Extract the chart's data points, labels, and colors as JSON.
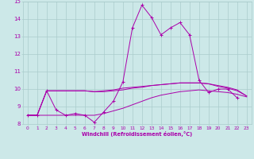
{
  "xlabel": "Windchill (Refroidissement éolien,°C)",
  "bg_color": "#cce8e8",
  "grid_color": "#aacccc",
  "line_color": "#aa00aa",
  "x": [
    0,
    1,
    2,
    3,
    4,
    5,
    6,
    7,
    8,
    9,
    10,
    11,
    12,
    13,
    14,
    15,
    16,
    17,
    18,
    19,
    20,
    21,
    22,
    23
  ],
  "line1_y": [
    8.5,
    8.5,
    9.9,
    8.8,
    8.5,
    8.6,
    8.5,
    8.1,
    8.7,
    9.3,
    10.4,
    13.5,
    14.8,
    14.1,
    13.1,
    13.5,
    13.8,
    13.1,
    10.5,
    9.8,
    10.0,
    10.0,
    9.5,
    null
  ],
  "line2_y": [
    8.5,
    8.5,
    9.9,
    9.9,
    9.9,
    9.9,
    9.9,
    9.85,
    9.9,
    9.95,
    10.05,
    10.1,
    10.15,
    10.2,
    10.25,
    10.3,
    10.35,
    10.35,
    10.35,
    10.3,
    10.2,
    10.1,
    9.95,
    9.6
  ],
  "line3_y": [
    8.5,
    8.5,
    8.5,
    8.5,
    8.5,
    8.5,
    8.5,
    8.5,
    8.6,
    8.75,
    8.9,
    9.1,
    9.3,
    9.5,
    9.65,
    9.75,
    9.85,
    9.9,
    9.95,
    9.9,
    9.85,
    9.8,
    9.7,
    9.55
  ],
  "line4_y": [
    8.5,
    8.5,
    9.9,
    9.9,
    9.9,
    9.9,
    9.9,
    9.85,
    9.85,
    9.9,
    9.95,
    10.05,
    10.1,
    10.2,
    10.25,
    10.3,
    10.35,
    10.35,
    10.35,
    10.3,
    10.15,
    10.05,
    9.9,
    9.6
  ],
  "ylim": [
    8,
    15
  ],
  "yticks": [
    8,
    9,
    10,
    11,
    12,
    13,
    14,
    15
  ],
  "xlim": [
    -0.5,
    23.5
  ]
}
